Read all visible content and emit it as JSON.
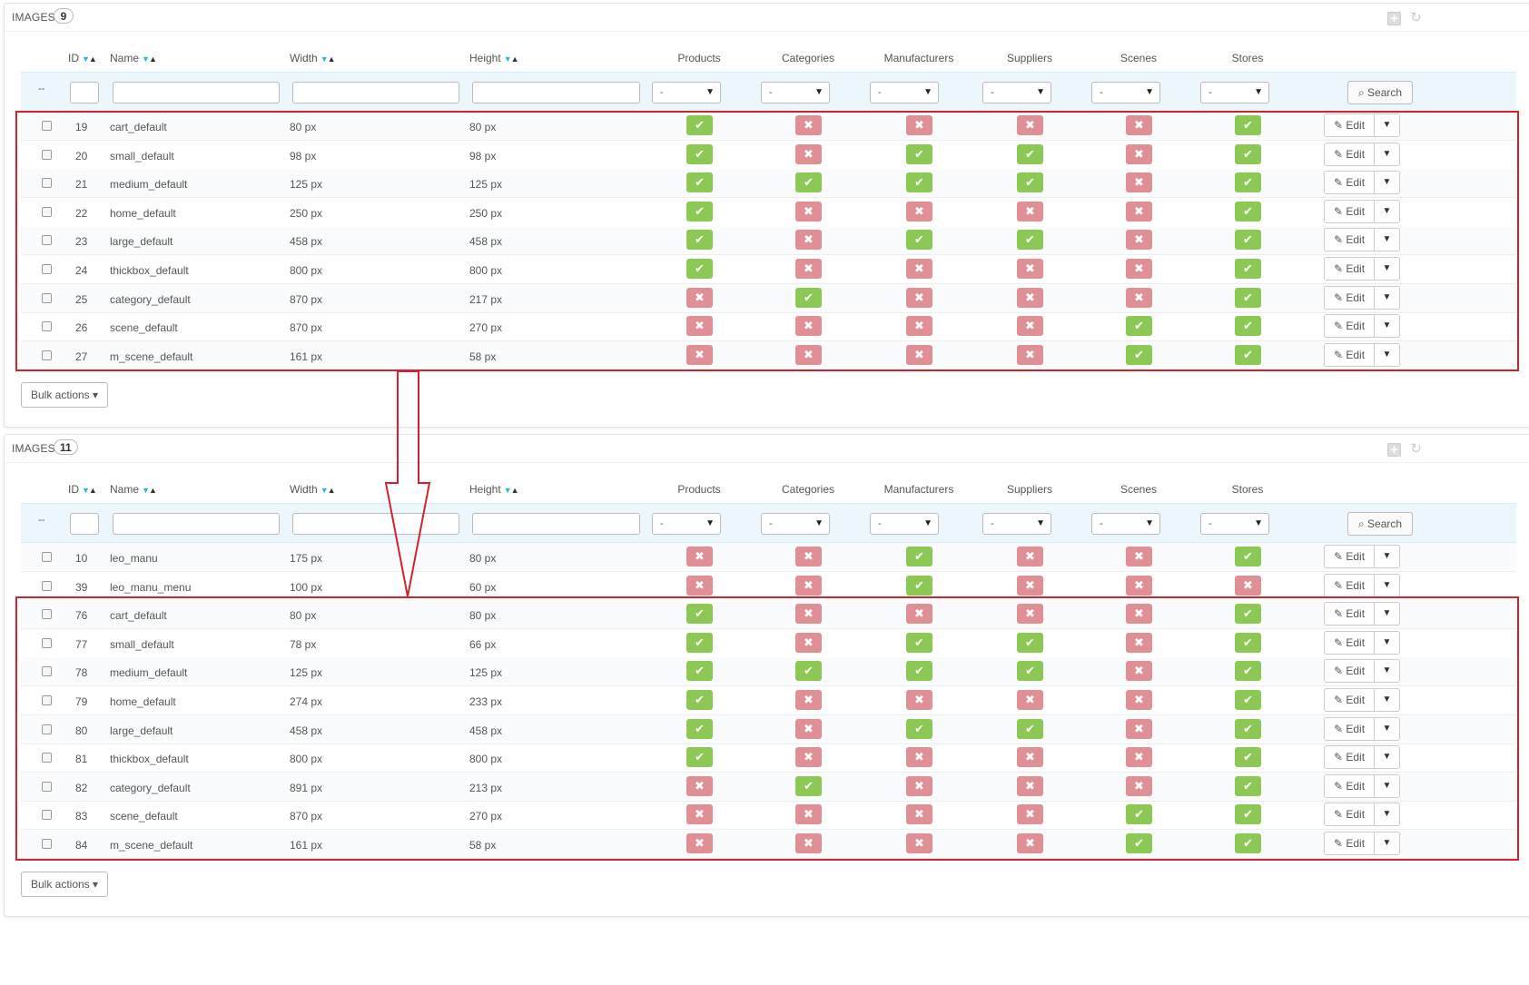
{
  "panels": [
    {
      "title": "IMAGES",
      "count": "9",
      "columns": {
        "id": "ID",
        "name": "Name",
        "width": "Width",
        "height": "Height",
        "products": "Products",
        "categories": "Categories",
        "manufacturers": "Manufacturers",
        "suppliers": "Suppliers",
        "scenes": "Scenes",
        "stores": "Stores"
      },
      "filter_dash": "--",
      "select_value": "-",
      "search_label": "Search",
      "edit_label": "Edit",
      "bulk_label": "Bulk actions",
      "rows": [
        {
          "id": "19",
          "name": "cart_default",
          "width": "80 px",
          "height": "80 px",
          "flags": [
            true,
            false,
            false,
            false,
            false,
            true
          ]
        },
        {
          "id": "20",
          "name": "small_default",
          "width": "98 px",
          "height": "98 px",
          "flags": [
            true,
            false,
            true,
            true,
            false,
            true
          ]
        },
        {
          "id": "21",
          "name": "medium_default",
          "width": "125 px",
          "height": "125 px",
          "flags": [
            true,
            true,
            true,
            true,
            false,
            true
          ]
        },
        {
          "id": "22",
          "name": "home_default",
          "width": "250 px",
          "height": "250 px",
          "flags": [
            true,
            false,
            false,
            false,
            false,
            true
          ]
        },
        {
          "id": "23",
          "name": "large_default",
          "width": "458 px",
          "height": "458 px",
          "flags": [
            true,
            false,
            true,
            true,
            false,
            true
          ]
        },
        {
          "id": "24",
          "name": "thickbox_default",
          "width": "800 px",
          "height": "800 px",
          "flags": [
            true,
            false,
            false,
            false,
            false,
            true
          ]
        },
        {
          "id": "25",
          "name": "category_default",
          "width": "870 px",
          "height": "217 px",
          "flags": [
            false,
            true,
            false,
            false,
            false,
            true
          ]
        },
        {
          "id": "26",
          "name": "scene_default",
          "width": "870 px",
          "height": "270 px",
          "flags": [
            false,
            false,
            false,
            false,
            true,
            true
          ]
        },
        {
          "id": "27",
          "name": "m_scene_default",
          "width": "161 px",
          "height": "58 px",
          "flags": [
            false,
            false,
            false,
            false,
            true,
            true
          ]
        }
      ]
    },
    {
      "title": "IMAGES",
      "count": "11",
      "columns": {
        "id": "ID",
        "name": "Name",
        "width": "Width",
        "height": "Height",
        "products": "Products",
        "categories": "Categories",
        "manufacturers": "Manufacturers",
        "suppliers": "Suppliers",
        "scenes": "Scenes",
        "stores": "Stores"
      },
      "filter_dash": "--",
      "select_value": "-",
      "search_label": "Search",
      "edit_label": "Edit",
      "bulk_label": "Bulk actions",
      "rows": [
        {
          "id": "10",
          "name": "leo_manu",
          "width": "175 px",
          "height": "80 px",
          "flags": [
            false,
            false,
            true,
            false,
            false,
            true
          ]
        },
        {
          "id": "39",
          "name": "leo_manu_menu",
          "width": "100 px",
          "height": "60 px",
          "flags": [
            false,
            false,
            true,
            false,
            false,
            false
          ]
        },
        {
          "id": "76",
          "name": "cart_default",
          "width": "80 px",
          "height": "80 px",
          "flags": [
            true,
            false,
            false,
            false,
            false,
            true
          ]
        },
        {
          "id": "77",
          "name": "small_default",
          "width": "78 px",
          "height": "66 px",
          "flags": [
            true,
            false,
            true,
            true,
            false,
            true
          ]
        },
        {
          "id": "78",
          "name": "medium_default",
          "width": "125 px",
          "height": "125 px",
          "flags": [
            true,
            true,
            true,
            true,
            false,
            true
          ]
        },
        {
          "id": "79",
          "name": "home_default",
          "width": "274 px",
          "height": "233 px",
          "flags": [
            true,
            false,
            false,
            false,
            false,
            true
          ]
        },
        {
          "id": "80",
          "name": "large_default",
          "width": "458 px",
          "height": "458 px",
          "flags": [
            true,
            false,
            true,
            true,
            false,
            true
          ]
        },
        {
          "id": "81",
          "name": "thickbox_default",
          "width": "800 px",
          "height": "800 px",
          "flags": [
            true,
            false,
            false,
            false,
            false,
            true
          ]
        },
        {
          "id": "82",
          "name": "category_default",
          "width": "891 px",
          "height": "213 px",
          "flags": [
            false,
            true,
            false,
            false,
            false,
            true
          ]
        },
        {
          "id": "83",
          "name": "scene_default",
          "width": "870 px",
          "height": "270 px",
          "flags": [
            false,
            false,
            false,
            false,
            true,
            true
          ]
        },
        {
          "id": "84",
          "name": "m_scene_default",
          "width": "161 px",
          "height": "58 px",
          "flags": [
            false,
            false,
            false,
            false,
            true,
            true
          ]
        }
      ]
    }
  ],
  "icons": {
    "check": "check-icon",
    "cross": "cross-icon",
    "pencil": "pencil-icon",
    "search": "search-icon",
    "caret": "caret-down-icon",
    "add": "add-icon",
    "refresh": "refresh-icon"
  },
  "colors": {
    "yes": "#8bc954",
    "no": "#e08f95",
    "highlight": "#d0232e",
    "filter_bg": "#ebf7fd",
    "sort_arrow": "#25b9d7"
  }
}
